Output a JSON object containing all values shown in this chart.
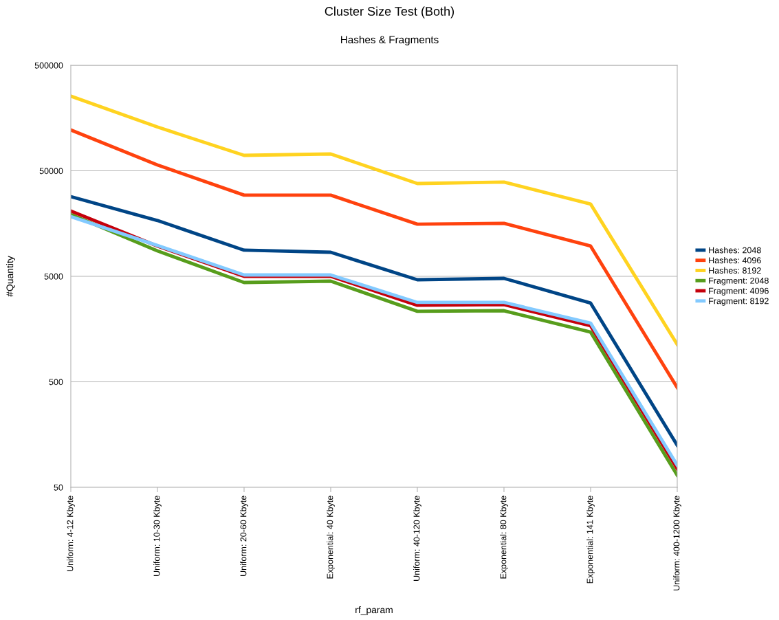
{
  "chart_data": {
    "type": "line",
    "title": "Cluster Size Test (Both)",
    "subtitle": "Hashes & Fragments",
    "xlabel": "rf_param",
    "ylabel": "#Quantity",
    "categories": [
      "Uniform: 4-12 Kbyte",
      "Uniform: 10-30 Kbyte",
      "Uniform: 20-60 Kbyte",
      "Exponential: 40 Kbyte",
      "Uniform: 40-120 Kbyte",
      "Exponential: 80 Kbyte",
      "Exponential: 141 Kbyte",
      "Uniform: 400-1200 Kbyte"
    ],
    "series": [
      {
        "name": "Hashes: 2048",
        "color": "#004586",
        "values": [
          28500,
          16900,
          8850,
          8450,
          4640,
          4780,
          2790,
          125
        ]
      },
      {
        "name": "Hashes: 4096",
        "color": "#ff420e",
        "values": [
          122000,
          56800,
          29400,
          29400,
          15600,
          15900,
          9680,
          440
        ]
      },
      {
        "name": "Hashes: 8192",
        "color": "#ffd320",
        "values": [
          255000,
          130000,
          70100,
          72200,
          37900,
          39100,
          24200,
          1130
        ]
      },
      {
        "name": "Fragment: 2048",
        "color": "#579d1c",
        "values": [
          19300,
          8700,
          4370,
          4500,
          2330,
          2360,
          1480,
          65
        ]
      },
      {
        "name": "Fragment: 4096",
        "color": "#c5000b",
        "values": [
          20800,
          9680,
          5000,
          5000,
          2660,
          2700,
          1700,
          75
        ]
      },
      {
        "name": "Fragment: 8192",
        "color": "#83caff",
        "values": [
          18400,
          9800,
          5150,
          5150,
          2830,
          2830,
          1800,
          81
        ]
      }
    ],
    "log": "y",
    "ylim": [
      50,
      500000
    ],
    "yticks": [
      50,
      500,
      5000,
      50000,
      500000
    ],
    "grid": "y",
    "legend": "right",
    "marker": "none",
    "line_style": "solid"
  }
}
